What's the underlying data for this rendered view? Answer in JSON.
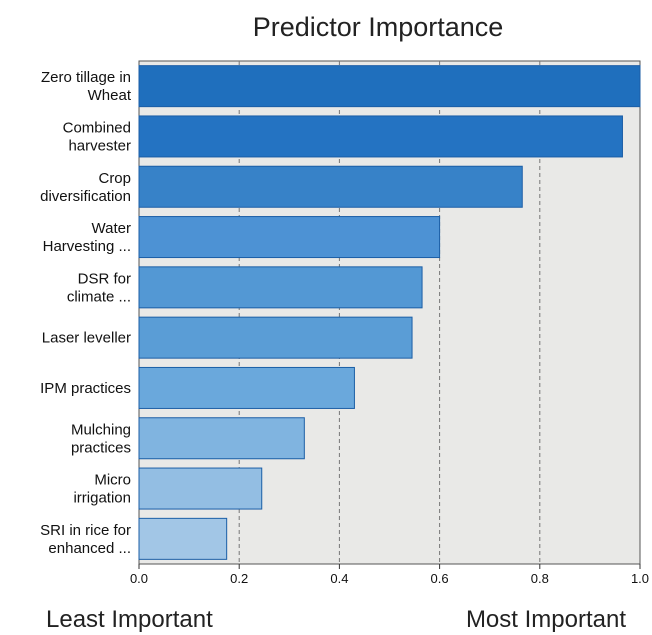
{
  "chart_data": {
    "type": "bar",
    "orientation": "horizontal",
    "title": "Predictor Importance",
    "categories": [
      [
        "Zero tillage in",
        "Wheat"
      ],
      [
        "Combined",
        "harvester"
      ],
      [
        "Crop",
        "diversification"
      ],
      [
        "Water",
        "Harvesting ..."
      ],
      [
        "DSR for",
        "climate ..."
      ],
      [
        "Laser leveller"
      ],
      [
        "IPM practices"
      ],
      [
        "Mulching",
        "practices"
      ],
      [
        "Micro",
        "irrigation"
      ],
      [
        "SRI in rice for",
        "enhanced ..."
      ]
    ],
    "values": [
      1.0,
      0.965,
      0.765,
      0.6,
      0.565,
      0.545,
      0.43,
      0.33,
      0.245,
      0.175
    ],
    "bar_colors": [
      "#1f6fbd",
      "#2473c2",
      "#3782c8",
      "#4d92d4",
      "#5398d4",
      "#5a9dd6",
      "#6aa8dc",
      "#80b4e0",
      "#93bee3",
      "#a2c6e6"
    ],
    "xlim": [
      0,
      1.0
    ],
    "xticks": [
      "0.0",
      "0.2",
      "0.4",
      "0.6",
      "0.8",
      "1.0"
    ],
    "grid": true,
    "footer": {
      "left": "Least Important",
      "right": "Most Important"
    }
  }
}
